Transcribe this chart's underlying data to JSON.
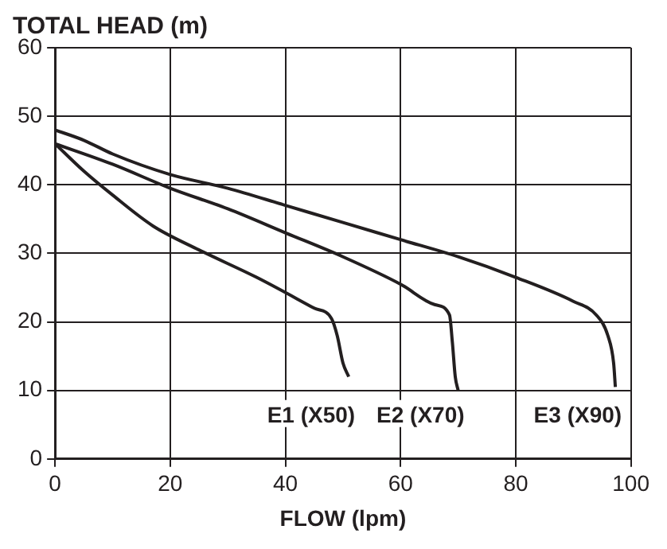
{
  "chart_data": {
    "type": "line",
    "ylabel": "TOTAL HEAD (m)",
    "xlabel": "FLOW (lpm)",
    "xlim": [
      0,
      100
    ],
    "xticks": [
      0,
      20,
      40,
      60,
      80,
      100
    ],
    "ylim": [
      0,
      60
    ],
    "yticks": [
      0,
      10,
      20,
      30,
      40,
      50,
      60
    ],
    "grid": true,
    "marker": "none",
    "line_style": "solid",
    "series": [
      {
        "name": "E1 (X50)",
        "color": "#231f20",
        "x": [
          0,
          5,
          10,
          17,
          25,
          35,
          45,
          48,
          49,
          50,
          51
        ],
        "values": [
          46,
          42,
          38.5,
          34,
          30.5,
          26.5,
          22,
          20.5,
          18,
          14,
          12
        ]
      },
      {
        "name": "E2 (X70)",
        "color": "#231f20",
        "x": [
          0,
          10,
          20,
          30,
          40,
          50,
          60,
          66,
          68.5,
          69,
          69.5,
          70
        ],
        "values": [
          46,
          43,
          39.5,
          36.5,
          33,
          29.5,
          25.5,
          22.5,
          21,
          17,
          12,
          10
        ]
      },
      {
        "name": "E3 (X90)",
        "color": "#231f20",
        "x": [
          0,
          5,
          10,
          20,
          30,
          40,
          50,
          60,
          70,
          80,
          90,
          94,
          96,
          97,
          97.3
        ],
        "values": [
          48,
          46.5,
          44.5,
          41.5,
          39.5,
          37,
          34.5,
          32,
          29.5,
          26.5,
          23,
          21,
          18,
          14,
          10.5
        ]
      }
    ]
  }
}
